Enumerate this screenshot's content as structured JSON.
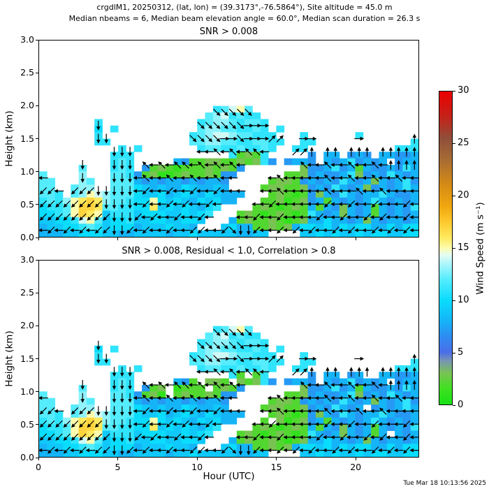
{
  "header": {
    "line1": "crgdlM1, 20250312, (lat, lon) = (39.3173°,-76.5864°), Site altitude = 45.0 m",
    "line2": "Median nbeams = 6, Median beam elevation angle = 60.0°, Median scan duration = 26.3 s"
  },
  "chart_data": {
    "type": "heatmap+quiver",
    "suptitle_line1": "crgdlM1, 20250312, (lat, lon) = (39.3173°,-76.5864°), Site altitude = 45.0 m",
    "suptitle_line2": "Median nbeams = 6, Median beam elevation angle = 60.0°, Median scan duration = 26.3 s",
    "x_axis": {
      "label": "Hour (UTC)",
      "ticks": [
        0,
        5,
        10,
        15,
        20
      ],
      "range": [
        0,
        24
      ]
    },
    "y_axis": {
      "label": "Height (km)",
      "ticks": [
        "3.0",
        "2.5",
        "2.0",
        "1.5",
        "1.0",
        "0.5",
        "0.0"
      ],
      "tick_values": [
        3.0,
        2.5,
        2.0,
        1.5,
        1.0,
        0.5,
        0.0
      ],
      "range": [
        0,
        3
      ]
    },
    "colorbar": {
      "label": "Wind Speed (m s⁻¹)",
      "ticks": [
        0,
        5,
        10,
        15,
        20,
        25,
        30
      ],
      "range": [
        0,
        30
      ],
      "stops": [
        [
          0,
          "#16e116"
        ],
        [
          1.5,
          "#3fe11f"
        ],
        [
          3,
          "#79c353"
        ],
        [
          4.2,
          "#7795b4"
        ],
        [
          5,
          "#4a6ee8"
        ],
        [
          6.5,
          "#2f8cf2"
        ],
        [
          8,
          "#15b4f7"
        ],
        [
          10,
          "#0adcfd"
        ],
        [
          12,
          "#55ecfd"
        ],
        [
          13.5,
          "#aef6fb"
        ],
        [
          14.3,
          "#e4fdf3"
        ],
        [
          15,
          "#fdfcae"
        ],
        [
          16,
          "#ffe95e"
        ],
        [
          17.5,
          "#fec92e"
        ],
        [
          19,
          "#f0a70f"
        ],
        [
          21,
          "#d68c14"
        ],
        [
          23.5,
          "#a76b35"
        ],
        [
          25.5,
          "#8f4f3a"
        ],
        [
          27.5,
          "#c2231a"
        ],
        [
          30,
          "#ec0000"
        ]
      ]
    },
    "grid_spec": {
      "cols": 48,
      "hours_per_col": 0.5,
      "hour_range": [
        0,
        24
      ],
      "rows": 20,
      "km_per_row": 0.1,
      "height_range_km": [
        0,
        2.0
      ],
      "speed_encoding": "base36 char = wind speed m/s ('0'-'9'=0-9,'a'=10...'i'=18), '.' = no data; rows listed top (2.0 km) to bottom (0 km)",
      "arrow_rows": 10,
      "arrow_km_per_row": 0.2,
      "arrow_encoding": "e=E d=NE n=N b=NW w=W a=SW s=S c=SE, '.' = no arrow"
    },
    "panels": [
      {
        "title": "SNR > 0.008",
        "speed_grid": [
          "......................bcefc.....................",
          ".....................cdebcbb....................",
          ".......b............bcddcbccb...................",
          ".......a.b..........cddccbbcb.b.................",
          ".......b...........bcdeedccbbb...b......b.......",
          ".......bb..........ccddccbbccbb..bb............b",
          "..........b.b.......bccbbcbbcb..bb...........bbb",
          ".........bbb............b232b.....7.88.787.88778",
          ".........bcb.....87223322323b7.7887.878b7878.788",
          ".....c...bcb.7232122232327.......3778b78287787b8",
          "c....d...ccb7231123223277......22378778b3787b878",
          "cc...dc..ccc878788787887.....233278787b8783878b7",
          "cc..cdd..ccca98988a98898....233223787b87837878b8",
          "ccb.cdfedccca99a89a98a9888...232127387b8788b8778",
          "bcbdfghgdccbaafa9a98a9a88...22312378287878b87878",
          "abbcfhhgccbbaag9a9a98ab....23212328287387828787b",
          "aabcfhgf9bbb9aaa99a9ab...232123212b8783878287878",
          "99aabefc9aab99aa99aa9...823223212388a88783878878",
          "899aabcb9aaa8999a998...9a88223238aa9a8a9aa88a8aa",
          "88899aaa99889999899a999998899....99a9a99a9aa99aa"
        ]
      },
      {
        "title": "SNR > 0.008, Residual < 1.0, Correlation > 0.8",
        "speed_grid": [
          "......................bcefc.....................",
          ".....................cdebcbb....................",
          "....................bcddcbccb...................",
          ".......a.b..........cddccbbcb.b.................",
          ".......b...........bcdeedccbbb...b..............",
          ".......bb..........ccddccbbccbb..bb............b",
          "..........b.b.......bccbbcbbcb..bb...........bbb",
          ".........bbb............b2.2b.....7.88.78..88778",
          ".........bcb.....872.332.323b7.7887.878b7878.788",
          ".....c...bcb.723.1222.2327.......3778b78287787b8",
          "c....d...ccb7231.23223277......22378778b3787b878",
          "cc...dc..ccc878788787887.....233278787b8783878b7",
          "cc..cdd..ccca98988a98898....233223787b878.7878b8",
          "ccb.cdfedccca99a89a98a9888...232127387b8788b8778",
          "bcbdfghgdccbaafa9a98a9a88...2.312378287878b87878",
          "abbcfhhgccbbaag9a9a98ab....23212328287387828787b",
          "aabcfhgf9bbb9aaa99a9ab...232123212b878387828.878",
          "99aabefc9aab99aa99aa9...823223212388a88783878878",
          "899aabcb9aaa8999a998...9a88223238aa9a8a9aa88a8aa",
          "88899aaa99889999899a999998899....99a9a99a9aa99aa"
        ]
      }
    ],
    "dir_grid": [
      "......................ccccc.....................",
      ".......s............cccccceee...................",
      ".......ss..........cccceeceeedd..ee.....e......n",
      ".........sss........wwbwbwbbw...ddn.nn.nnn.nnnnn",
      ".....s...sss.bwbwbbwbwbwbw.......bwwbwwbwwbwnnnn",
      "w....s...ssswbwwbwwbwwbww....wbwwwwwbwwbwwbwwbww",
      "aaw.aaassssswawwawwawwawww..wwbwwwwwbwwwbwwbwwww",
      "aaaaaaaasssswawwawawwaw....wwawwwwwwawwawwawwwaw",
      "aaaaaaaaasssawawwawwaw...wwawwawwwwawwawwawawwaw",
      "wawawawaassawawwawwaawwacssawwawawawwawawwawawaw"
    ],
    "timestamp": "Tue Mar 18 10:13:56 2025"
  }
}
